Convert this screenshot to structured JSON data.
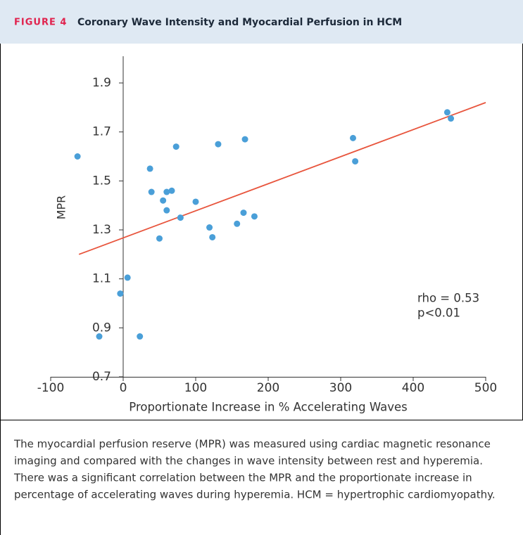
{
  "figure_label": "FIGURE 4",
  "chart_data": {
    "type": "scatter",
    "title": "Coronary Wave Intensity and Myocardial Perfusion in HCM",
    "x_label": "Proportionate Increase in % Accelerating Waves",
    "y_label": "MPR",
    "series": [
      {
        "color": "#4a9fd8",
        "x": [
          -63,
          37,
          39,
          73,
          131,
          168,
          317,
          320,
          447,
          452,
          55,
          60,
          67,
          60,
          79,
          100,
          50,
          119,
          123,
          157,
          166,
          181,
          6,
          -4,
          -33,
          23
        ],
        "values": [
          1.6,
          1.55,
          1.455,
          1.64,
          1.65,
          1.67,
          1.675,
          1.58,
          1.78,
          1.755,
          1.42,
          1.455,
          1.46,
          1.38,
          1.35,
          1.415,
          1.265,
          1.31,
          1.27,
          1.325,
          1.37,
          1.355,
          1.105,
          1.04,
          0.865,
          0.865
        ]
      }
    ],
    "fit": {
      "color": "#e8553d",
      "x": [
        -61,
        500
      ],
      "values": [
        1.2,
        1.82
      ]
    },
    "annotations": [
      "rho = 0.53",
      "p<0.01"
    ],
    "xlim": [
      -100,
      500
    ],
    "xticks": [
      -100,
      0,
      100,
      200,
      300,
      400,
      500
    ],
    "ylim": [
      0.7,
      1.9
    ],
    "yticks": [
      0.7,
      0.9,
      1.1,
      1.3,
      1.5,
      1.7,
      1.9
    ]
  },
  "caption": [
    "The myocardial perfusion reserve (MPR) was measured using cardiac magnetic resonance",
    "imaging and compared with the changes in wave intensity between rest and hyperemia.",
    "There was a significant correlation between the MPR and the proportionate increase in",
    "percentage of accelerating waves during hyperemia. HCM = hypertrophic cardiomyopathy."
  ]
}
